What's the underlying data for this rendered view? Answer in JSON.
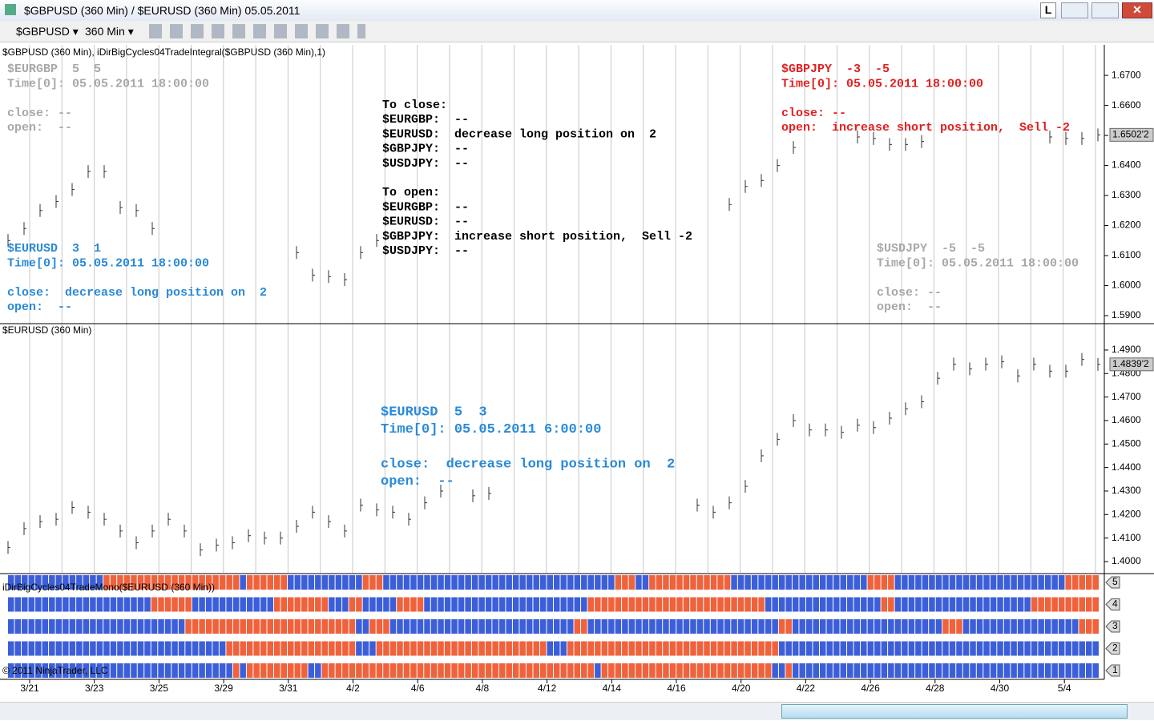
{
  "window": {
    "title": "$GBPUSD (360 Min) / $EURUSD (360 Min)  05.05.2011",
    "button": "L"
  },
  "toolbar": {
    "instrument": "$GBPUSD",
    "interval": "360 Min"
  },
  "upper_panel": {
    "label": "$GBPUSD (360 Min), iDirBigCycles04TradeIntegral($GBPUSD (360 Min),1)",
    "ylim": [
      1.5876,
      1.6791
    ],
    "yticks": [
      {
        "value": 1.67,
        "label": "1.6700"
      },
      {
        "value": 1.66,
        "label": "1.6600"
      },
      {
        "value": 1.65,
        "label": "1.6500"
      },
      {
        "value": 1.64,
        "label": "1.6400"
      },
      {
        "value": 1.63,
        "label": "1.6300"
      },
      {
        "value": 1.62,
        "label": "1.6200"
      },
      {
        "value": 1.61,
        "label": "1.6100"
      },
      {
        "value": 1.6,
        "label": "1.6000"
      },
      {
        "value": 1.59,
        "label": "1.5900"
      }
    ],
    "last": {
      "value": 1.6502,
      "label": "1.6502'2"
    },
    "values": [
      1.615,
      1.619,
      1.625,
      1.628,
      1.632,
      1.638,
      1.638,
      1.626,
      1.625,
      1.619,
      null,
      null,
      null,
      null,
      null,
      null,
      null,
      null,
      1.611,
      1.6035,
      1.603,
      1.602,
      1.611,
      1.615,
      null,
      null,
      null,
      null,
      null,
      null,
      null,
      null,
      null,
      null,
      null,
      null,
      null,
      null,
      null,
      null,
      null,
      null,
      null,
      null,
      null,
      1.627,
      1.633,
      1.635,
      1.64,
      1.646,
      null,
      null,
      null,
      1.6495,
      1.649,
      1.647,
      1.647,
      1.648,
      null,
      null,
      null,
      null,
      null,
      null,
      null,
      1.6495,
      1.649,
      1.649,
      1.6502
    ],
    "notes": {
      "eurgbp": {
        "head": [
          "$EURGBP  5  5",
          "Time[0]: 05.05.2011 18:00:00"
        ],
        "body": [
          "close: --",
          "open:  --"
        ]
      },
      "gbpjpy": {
        "head": [
          "$GBPJPY  -3  -5",
          "Time[0]: 05.05.2011 18:00:00"
        ],
        "body": [
          "close: --",
          "open:  increase short position,  Sell -2"
        ]
      },
      "eurusd": {
        "head": [
          "$EURUSD  3  1",
          "Time[0]: 05.05.2011 18:00:00"
        ],
        "body": [
          "close:  decrease long position on  2",
          "open:  --"
        ]
      },
      "usdjpy": {
        "head": [
          "$USDJPY  -5  -5",
          "Time[0]: 05.05.2011 18:00:00"
        ],
        "body": [
          "close: --",
          "open:  --"
        ]
      },
      "summary": {
        "close": [
          "To close:",
          "$EURGBP:  --",
          "$EURUSD:  decrease long position on  2",
          "$GBPJPY:  --",
          "$USDJPY:  --"
        ],
        "open": [
          "To open:",
          "$EURGBP:  --",
          "$EURUSD:  --",
          "$GBPJPY:  increase short position,  Sell -2",
          "$USDJPY:  --"
        ]
      }
    }
  },
  "lower_panel": {
    "label": "$EURUSD (360 Min)",
    "ylim": [
      1.3959,
      1.5002
    ],
    "yticks": [
      {
        "value": 1.49,
        "label": "1.4900"
      },
      {
        "value": 1.48,
        "label": "1.4800"
      },
      {
        "value": 1.47,
        "label": "1.4700"
      },
      {
        "value": 1.46,
        "label": "1.4600"
      },
      {
        "value": 1.45,
        "label": "1.4500"
      },
      {
        "value": 1.44,
        "label": "1.4400"
      },
      {
        "value": 1.43,
        "label": "1.4300"
      },
      {
        "value": 1.42,
        "label": "1.4200"
      },
      {
        "value": 1.41,
        "label": "1.4100"
      },
      {
        "value": 1.4,
        "label": "1.4000"
      }
    ],
    "last": {
      "value": 1.4839,
      "label": "1.4839'2"
    },
    "values": [
      1.406,
      1.414,
      1.417,
      1.418,
      1.423,
      1.421,
      1.418,
      1.413,
      1.408,
      1.413,
      1.418,
      1.413,
      1.405,
      1.407,
      1.408,
      1.411,
      1.41,
      1.41,
      1.415,
      1.421,
      1.417,
      1.413,
      1.424,
      1.422,
      1.421,
      1.418,
      1.425,
      1.43,
      null,
      1.428,
      1.429,
      null,
      null,
      null,
      null,
      null,
      null,
      null,
      null,
      null,
      null,
      null,
      null,
      1.424,
      1.421,
      1.425,
      1.432,
      1.445,
      1.452,
      1.46,
      1.456,
      1.456,
      1.455,
      1.458,
      1.457,
      1.461,
      1.465,
      1.468,
      1.478,
      1.484,
      1.482,
      1.484,
      1.485,
      1.479,
      1.484,
      1.481,
      1.481,
      1.486,
      1.4839
    ],
    "note": {
      "head": [
        "$EURUSD  5  3",
        "Time[0]: 05.05.2011 6:00:00"
      ],
      "body": [
        "close:  decrease long position on  2",
        "open:  --"
      ]
    }
  },
  "mono_panel": {
    "label": "iDirBigCycles04TradeMono($EURUSD (360 Min))",
    "row_labels": [
      "5",
      "4",
      "3",
      "2",
      "1"
    ],
    "rows": [
      [
        [
          1,
          14
        ],
        [
          -1,
          20
        ],
        [
          1,
          1
        ],
        [
          -1,
          6
        ],
        [
          1,
          11
        ],
        [
          -1,
          3
        ],
        [
          1,
          34
        ],
        [
          -1,
          3
        ],
        [
          1,
          2
        ],
        [
          -1,
          12
        ],
        [
          1,
          20
        ],
        [
          -1,
          4
        ],
        [
          1,
          25
        ],
        [
          -1,
          5
        ]
      ],
      [
        [
          1,
          21
        ],
        [
          -1,
          6
        ],
        [
          1,
          12
        ],
        [
          -1,
          8
        ],
        [
          1,
          3
        ],
        [
          -1,
          2
        ],
        [
          1,
          5
        ],
        [
          -1,
          4
        ],
        [
          1,
          24
        ],
        [
          -1,
          26
        ],
        [
          1,
          17
        ],
        [
          -1,
          2
        ],
        [
          1,
          20
        ],
        [
          -1,
          10
        ]
      ],
      [
        [
          1,
          26
        ],
        [
          -1,
          25
        ],
        [
          1,
          2
        ],
        [
          -1,
          3
        ],
        [
          1,
          27
        ],
        [
          -1,
          2
        ],
        [
          1,
          28
        ],
        [
          -1,
          2
        ],
        [
          1,
          22
        ],
        [
          -1,
          3
        ],
        [
          1,
          17
        ],
        [
          -1,
          3
        ]
      ],
      [
        [
          1,
          32
        ],
        [
          -1,
          19
        ],
        [
          1,
          3
        ],
        [
          -1,
          25
        ],
        [
          1,
          3
        ],
        [
          -1,
          31
        ],
        [
          1,
          47
        ]
      ],
      [
        [
          1,
          33
        ],
        [
          -1,
          1
        ],
        [
          1,
          1
        ],
        [
          -1,
          9
        ],
        [
          1,
          2
        ],
        [
          -1,
          40
        ],
        [
          1,
          1
        ],
        [
          -1,
          25
        ],
        [
          1,
          2
        ],
        [
          -1,
          1
        ],
        [
          1,
          45
        ]
      ]
    ],
    "colors": {
      "up": "#3c5fd9",
      "down": "#f0623c"
    }
  },
  "dates": [
    "3/21",
    "3/23",
    "3/25",
    "3/29",
    "3/31",
    "4/2",
    "4/6",
    "4/8",
    "4/12",
    "4/14",
    "4/16",
    "4/20",
    "4/22",
    "4/26",
    "4/28",
    "4/30",
    "5/4"
  ],
  "copyright": "© 2011 NinjaTrader, LLC"
}
